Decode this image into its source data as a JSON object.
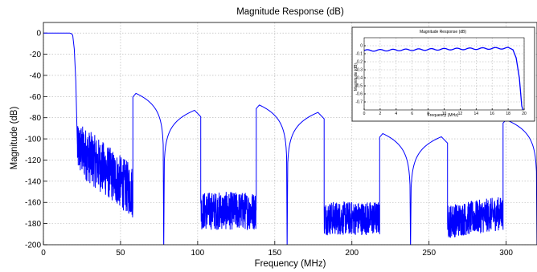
{
  "chart_data": [
    {
      "type": "line",
      "title": "Magnitude Response (dB)",
      "xlabel": "Frequency (MHz)",
      "ylabel": "Magnitude (dB)",
      "xlim": [
        0,
        320
      ],
      "ylim": [
        -200,
        10
      ],
      "grid": true,
      "line_color": "#0000ff",
      "xticks": [
        0,
        50,
        100,
        150,
        200,
        250,
        300
      ],
      "xtick_labels": [
        "0",
        "50",
        "100",
        "150",
        "200",
        "250",
        "300"
      ],
      "yticks": [
        0,
        -20,
        -40,
        -60,
        -80,
        -100,
        -120,
        -140,
        -160,
        -180,
        -200
      ],
      "ytick_labels": [
        "0",
        "-20",
        "-40",
        "-60",
        "-80",
        "-100",
        "-120",
        "-140",
        "-160",
        "-180",
        "-200"
      ],
      "series": [
        {
          "passband": [
            [
              0,
              0
            ],
            [
              17,
              0
            ],
            [
              18,
              -0.5
            ],
            [
              19,
              -2
            ],
            [
              20,
              -15
            ],
            [
              21,
              -45
            ],
            [
              21.5,
              -75
            ],
            [
              22,
              -105
            ]
          ],
          "noise_floor_segments": [
            {
              "x_range": [
                22,
                58
              ],
              "mean_db": [
                -108,
                -150
              ],
              "spread_db": 25
            },
            {
              "x_range": [
                102,
                138
              ],
              "mean_db": [
                -168,
                -168
              ],
              "spread_db": 18
            },
            {
              "x_range": [
                182,
                218
              ],
              "mean_db": [
                -175,
                -175
              ],
              "spread_db": 16
            },
            {
              "x_range": [
                262,
                298
              ],
              "mean_db": [
                -178,
                -170
              ],
              "spread_db": 16
            }
          ],
          "sidelobes": [
            {
              "x_start": 58,
              "x_end": 78,
              "peak_x": 60,
              "peak_db": -57
            },
            {
              "x_start": 78,
              "x_end": 102,
              "peak_x": 98,
              "peak_db": -73
            },
            {
              "x_start": 138,
              "x_end": 158,
              "peak_x": 140,
              "peak_db": -68
            },
            {
              "x_start": 158,
              "x_end": 182,
              "peak_x": 178,
              "peak_db": -75
            },
            {
              "x_start": 218,
              "x_end": 238,
              "peak_x": 220,
              "peak_db": -95
            },
            {
              "x_start": 238,
              "x_end": 262,
              "peak_x": 258,
              "peak_db": -98
            },
            {
              "x_start": 298,
              "x_end": 320,
              "peak_x": 300,
              "peak_db": -82
            }
          ]
        }
      ]
    },
    {
      "type": "line",
      "title": "Magnitude Response (dB)",
      "xlabel": "Frequency (MHz)",
      "ylabel": "Magnitude (dB)",
      "xlim": [
        0,
        20
      ],
      "ylim": [
        -0.8,
        0.1
      ],
      "grid": true,
      "legend": "none",
      "xticks": [
        0,
        2,
        4,
        6,
        8,
        10,
        12,
        14,
        16,
        18,
        20
      ],
      "xtick_labels": [
        "0",
        "2",
        "4",
        "6",
        "8",
        "10",
        "12",
        "14",
        "16",
        "18",
        "20"
      ],
      "yticks": [
        0,
        -0.1,
        -0.2,
        -0.3,
        -0.4,
        -0.5,
        -0.6,
        -0.7
      ],
      "ytick_labels": [
        "0",
        "-0.1",
        "-0.2",
        "-0.3",
        "-0.4",
        "-0.5",
        "-0.6",
        "-0.7"
      ],
      "series": [
        {
          "ripple": {
            "start_db": -0.06,
            "end_db": -0.03,
            "amplitude_db": 0.01,
            "period_mhz": 1.6
          },
          "rolloff": [
            [
              18.0,
              -0.02
            ],
            [
              18.6,
              -0.05
            ],
            [
              19.0,
              -0.15
            ],
            [
              19.4,
              -0.4
            ],
            [
              19.7,
              -0.75
            ],
            [
              19.85,
              -0.8
            ]
          ]
        }
      ]
    }
  ]
}
